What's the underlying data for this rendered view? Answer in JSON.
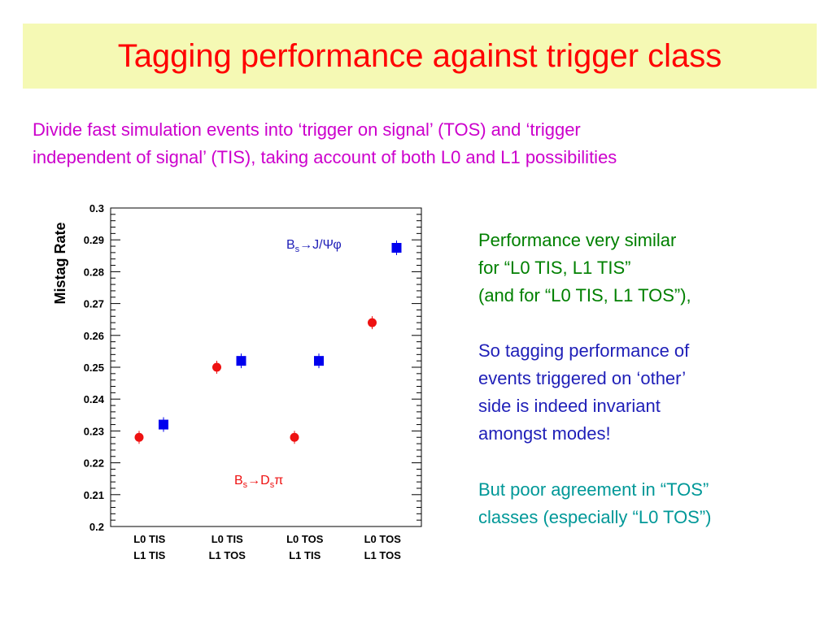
{
  "title": "Tagging performance against trigger class",
  "intro": [
    "Divide fast simulation events into ‘trigger on signal’ (TOS) and ‘trigger",
    "independent of signal’ (TIS), taking account of both L0 and L1 possibilities"
  ],
  "chart_data": {
    "type": "scatter",
    "ylabel": "Mistag Rate",
    "xlabel": "",
    "ylim": [
      0.2,
      0.3
    ],
    "yticks": [
      "0.2",
      "0.21",
      "0.22",
      "0.23",
      "0.24",
      "0.25",
      "0.26",
      "0.27",
      "0.28",
      "0.29",
      "0.3"
    ],
    "categories": [
      [
        "L0 TIS",
        "L1 TIS"
      ],
      [
        "L0 TIS",
        "L1 TOS"
      ],
      [
        "L0 TOS",
        "L1 TIS"
      ],
      [
        "L0 TOS",
        "L1 TOS"
      ]
    ],
    "series": [
      {
        "name": "Bs→Dsπ",
        "marker": "circle",
        "color": "#ee1111",
        "values": [
          0.228,
          0.25,
          0.228,
          0.264
        ]
      },
      {
        "name": "Bs→J/Ψφ",
        "marker": "square",
        "color": "#0000ee",
        "values": [
          0.232,
          0.252,
          0.252,
          0.2875
        ]
      }
    ],
    "legend": "annotations inside plot"
  },
  "side": {
    "green1": [
      "Performance very similar",
      "for  “L0 TIS, L1 TIS”",
      "(and for “L0 TIS, L1 TOS”),"
    ],
    "blue": [
      "So tagging performance of",
      "events triggered on ‘other’",
      "side is indeed invariant",
      "amongst modes!"
    ],
    "green2": [
      "But poor agreement in “TOS”",
      "classes (especially “L0 TOS”)"
    ]
  }
}
